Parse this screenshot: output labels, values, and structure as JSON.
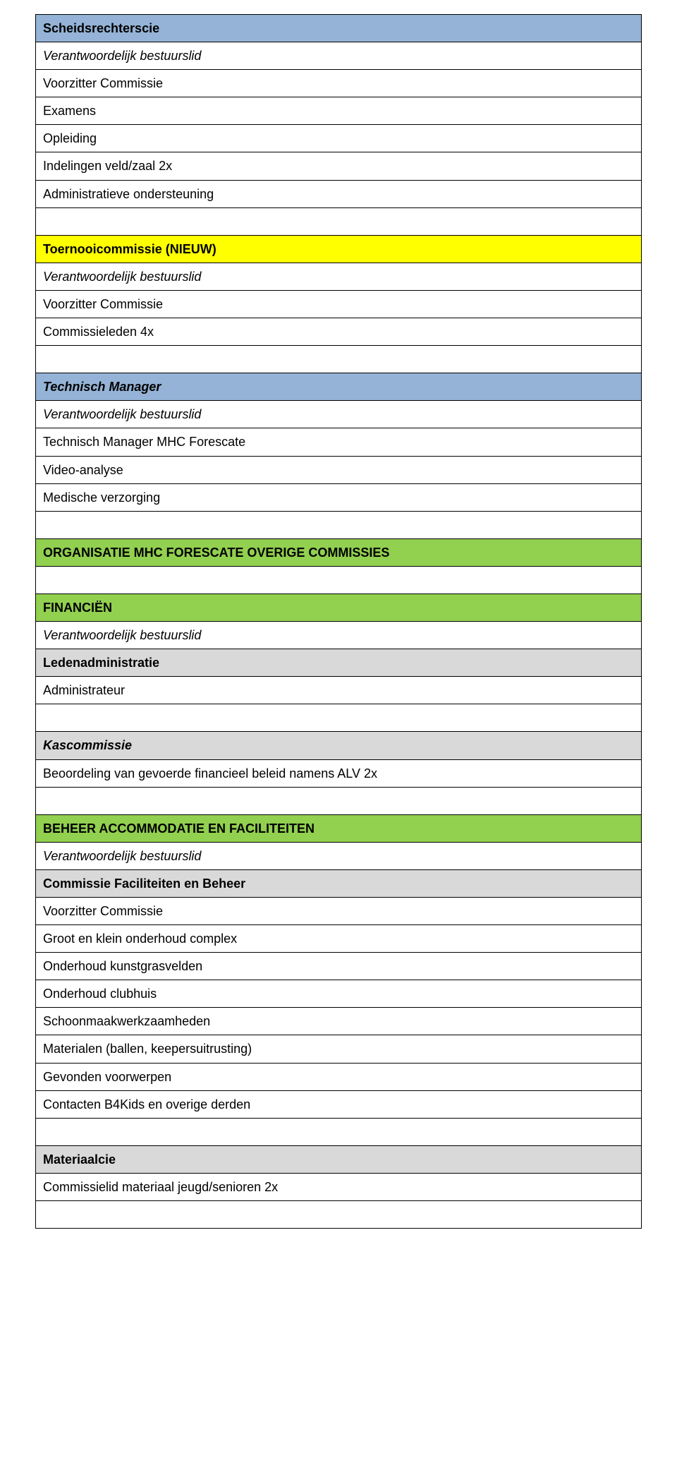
{
  "colors": {
    "header_blue": "#94b3d6",
    "header_yellow": "#ffff00",
    "header_green": "#92d050",
    "subheader_gray": "#d9d9d9",
    "border": "#000000",
    "text": "#000000",
    "white": "#ffffff"
  },
  "fonts": {
    "family": "Verdana, Geneva, sans-serif",
    "body_size": 18,
    "line_height": 1.45
  },
  "rows": [
    {
      "bg": "header_blue",
      "style": "bold",
      "text": "Scheidsrechterscie"
    },
    {
      "bg": "white",
      "style": "italic",
      "text": "Verantwoordelijk bestuurslid"
    },
    {
      "bg": "white",
      "style": "",
      "text": "Voorzitter Commissie"
    },
    {
      "bg": "white",
      "style": "",
      "text": "Examens"
    },
    {
      "bg": "white",
      "style": "",
      "text": "Opleiding"
    },
    {
      "bg": "white",
      "style": "",
      "text": "Indelingen veld/zaal 2x"
    },
    {
      "bg": "white",
      "style": "",
      "text": "Administratieve ondersteuning"
    },
    {
      "bg": "white",
      "style": "",
      "text": "",
      "spacer": true
    },
    {
      "bg": "header_yellow",
      "style": "bold",
      "text": "Toernooicommissie (NIEUW)"
    },
    {
      "bg": "white",
      "style": "italic",
      "text": "Verantwoordelijk bestuurslid"
    },
    {
      "bg": "white",
      "style": "",
      "text": "Voorzitter Commissie"
    },
    {
      "bg": "white",
      "style": "",
      "text": "Commissieleden 4x"
    },
    {
      "bg": "white",
      "style": "",
      "text": "",
      "spacer": true
    },
    {
      "bg": "header_blue",
      "style": "bolditalic",
      "text": "Technisch Manager"
    },
    {
      "bg": "white",
      "style": "italic",
      "text": "Verantwoordelijk bestuurslid"
    },
    {
      "bg": "white",
      "style": "",
      "text": "Technisch Manager MHC Forescate"
    },
    {
      "bg": "white",
      "style": "",
      "text": " Video-analyse"
    },
    {
      "bg": "white",
      "style": "",
      "text": "Medische verzorging"
    },
    {
      "bg": "white",
      "style": "",
      "text": "",
      "spacer": true
    },
    {
      "bg": "header_green",
      "style": "bold",
      "text": "ORGANISATIE MHC FORESCATE OVERIGE COMMISSIES"
    },
    {
      "bg": "white",
      "style": "",
      "text": "",
      "spacer": true
    },
    {
      "bg": "header_green",
      "style": "bold",
      "text": "FINANCIËN"
    },
    {
      "bg": "white",
      "style": "italic",
      "text": "Verantwoordelijk bestuurslid"
    },
    {
      "bg": "subheader_gray",
      "style": "bold",
      "text": "Ledenadministratie"
    },
    {
      "bg": "white",
      "style": "",
      "text": "Administrateur"
    },
    {
      "bg": "white",
      "style": "",
      "text": "",
      "spacer": true
    },
    {
      "bg": "subheader_gray",
      "style": "bolditalic",
      "text": "Kascommissie"
    },
    {
      "bg": "white",
      "style": "",
      "text": "Beoordeling van gevoerde financieel beleid namens ALV 2x"
    },
    {
      "bg": "white",
      "style": "",
      "text": "",
      "spacer": true
    },
    {
      "bg": "header_green",
      "style": "bold",
      "text": "BEHEER ACCOMMODATIE EN FACILITEITEN"
    },
    {
      "bg": "white",
      "style": "italic",
      "text": "Verantwoordelijk bestuurslid"
    },
    {
      "bg": "subheader_gray",
      "style": "bold",
      "text": "Commissie Faciliteiten en Beheer"
    },
    {
      "bg": "white",
      "style": "",
      "text": "Voorzitter Commissie"
    },
    {
      "bg": "white",
      "style": "",
      "text": "Groot en klein onderhoud complex"
    },
    {
      "bg": "white",
      "style": "",
      "text": "Onderhoud kunstgrasvelden"
    },
    {
      "bg": "white",
      "style": "",
      "text": "Onderhoud clubhuis"
    },
    {
      "bg": "white",
      "style": "",
      "text": "Schoonmaakwerkzaamheden"
    },
    {
      "bg": "white",
      "style": "",
      "text": "Materialen (ballen, keepersuitrusting)"
    },
    {
      "bg": "white",
      "style": "",
      "text": "Gevonden voorwerpen"
    },
    {
      "bg": "white",
      "style": "",
      "text": "Contacten B4Kids en overige derden"
    },
    {
      "bg": "white",
      "style": "",
      "text": "",
      "spacer": true
    },
    {
      "bg": "subheader_gray",
      "style": "bold",
      "text": "Materiaalcie"
    },
    {
      "bg": "white",
      "style": "",
      "text": "Commissielid materiaal jeugd/senioren 2x"
    },
    {
      "bg": "white",
      "style": "",
      "text": "",
      "spacer": true
    }
  ]
}
